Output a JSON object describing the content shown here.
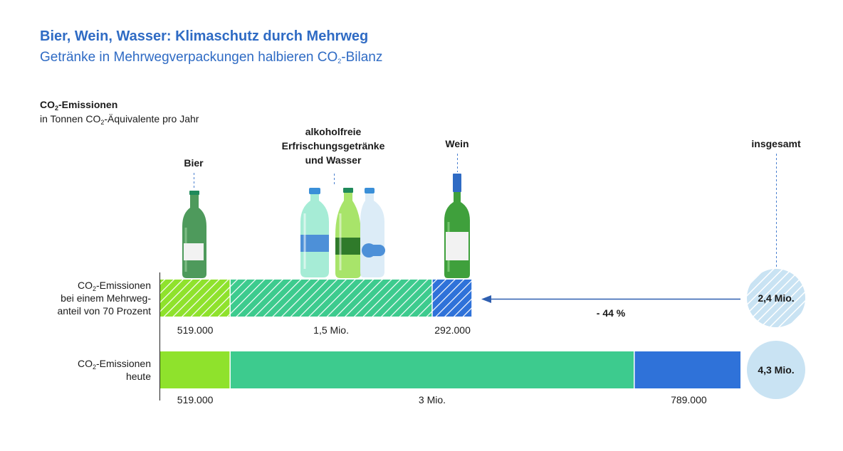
{
  "title": "Bier, Wein, Wasser: Klimaschutz durch Mehrweg",
  "subtitle": {
    "pre": "Getränke in Mehrwegverpackungen halbieren CO",
    "sub": "2",
    "post": "-Bilanz"
  },
  "unit": {
    "title_pre": "CO",
    "title_sub": "2",
    "title_post": "-Emissionen",
    "line_pre": "in Tonnen CO",
    "line_sub": "2",
    "line_post": "-Äquivalente pro Jahr"
  },
  "colors": {
    "bier": "#8fe22c",
    "wasser": "#3dcb8e",
    "wein": "#2f72d9",
    "total": "#c9e3f3",
    "arrow": "#2f5fb0",
    "guide": "#4a80d0"
  },
  "chart_data": {
    "type": "bar",
    "orientation": "horizontal",
    "stacked": true,
    "categories": [
      "Bier",
      "alkoholfreie Erfrischungsgetränke und Wasser",
      "Wein"
    ],
    "category_labels": [
      [
        "Bier"
      ],
      [
        "alkoholfreie",
        "Erfrischungsgetränke",
        "und Wasser"
      ],
      [
        "Wein"
      ]
    ],
    "total_label": "insgesamt",
    "series": [
      {
        "label_lines": [
          {
            "pre": "CO",
            "sub": "2",
            "post": "-Emissionen"
          },
          {
            "pre": "bei einem Mehrweg-",
            "sub": "",
            "post": ""
          },
          {
            "pre": "anteil von 70 Prozent",
            "sub": "",
            "post": ""
          }
        ],
        "values": [
          519000,
          1500000,
          292000
        ],
        "value_labels": [
          "519.000",
          "1,5 Mio.",
          "292.000"
        ],
        "total_label": "2,4 Mio.",
        "pattern": "hatched"
      },
      {
        "label_lines": [
          {
            "pre": "CO",
            "sub": "2",
            "post": "-Emissionen"
          },
          {
            "pre": "heute",
            "sub": "",
            "post": ""
          }
        ],
        "values": [
          519000,
          3000000,
          789000
        ],
        "value_labels": [
          "519.000",
          "3 Mio.",
          "789.000"
        ],
        "total_label": "4,3 Mio.",
        "pattern": "solid"
      }
    ],
    "annotation": "- 44 %"
  }
}
